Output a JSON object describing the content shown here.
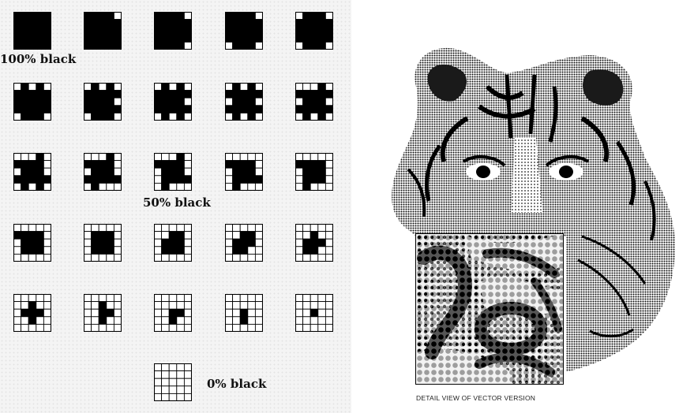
{
  "labels": {
    "full_black": "100% black",
    "half_black": "50% black",
    "no_black": "0% black",
    "detail_caption": "DETAIL VIEW OF VECTOR VERSION"
  },
  "colors": {
    "ink": "#000000",
    "paper": "#f4f4f4",
    "cell_white": "#ffffff"
  },
  "dither_cells": [
    {
      "row": 0,
      "col": 0,
      "black_pixels": 25
    },
    {
      "row": 0,
      "col": 1,
      "black_pixels": 24
    },
    {
      "row": 0,
      "col": 2,
      "black_pixels": 23
    },
    {
      "row": 0,
      "col": 3,
      "black_pixels": 22
    },
    {
      "row": 0,
      "col": 4,
      "black_pixels": 21
    },
    {
      "row": 1,
      "col": 0,
      "black_pixels": 20
    },
    {
      "row": 1,
      "col": 1,
      "black_pixels": 19
    },
    {
      "row": 1,
      "col": 2,
      "black_pixels": 18
    },
    {
      "row": 1,
      "col": 3,
      "black_pixels": 17
    },
    {
      "row": 1,
      "col": 4,
      "black_pixels": 16
    },
    {
      "row": 2,
      "col": 0,
      "black_pixels": 15
    },
    {
      "row": 2,
      "col": 1,
      "black_pixels": 14
    },
    {
      "row": 2,
      "col": 2,
      "black_pixels": 13
    },
    {
      "row": 2,
      "col": 3,
      "black_pixels": 12
    },
    {
      "row": 2,
      "col": 4,
      "black_pixels": 11
    },
    {
      "row": 3,
      "col": 0,
      "black_pixels": 10
    },
    {
      "row": 3,
      "col": 1,
      "black_pixels": 9
    },
    {
      "row": 3,
      "col": 2,
      "black_pixels": 8
    },
    {
      "row": 3,
      "col": 3,
      "black_pixels": 7
    },
    {
      "row": 3,
      "col": 4,
      "black_pixels": 6
    },
    {
      "row": 4,
      "col": 0,
      "black_pixels": 5
    },
    {
      "row": 4,
      "col": 1,
      "black_pixels": 4
    },
    {
      "row": 4,
      "col": 2,
      "black_pixels": 3
    },
    {
      "row": 4,
      "col": 3,
      "black_pixels": 2
    },
    {
      "row": 4,
      "col": 4,
      "black_pixels": 1
    },
    {
      "row": 5,
      "col": 2,
      "black_pixels": 0
    }
  ]
}
